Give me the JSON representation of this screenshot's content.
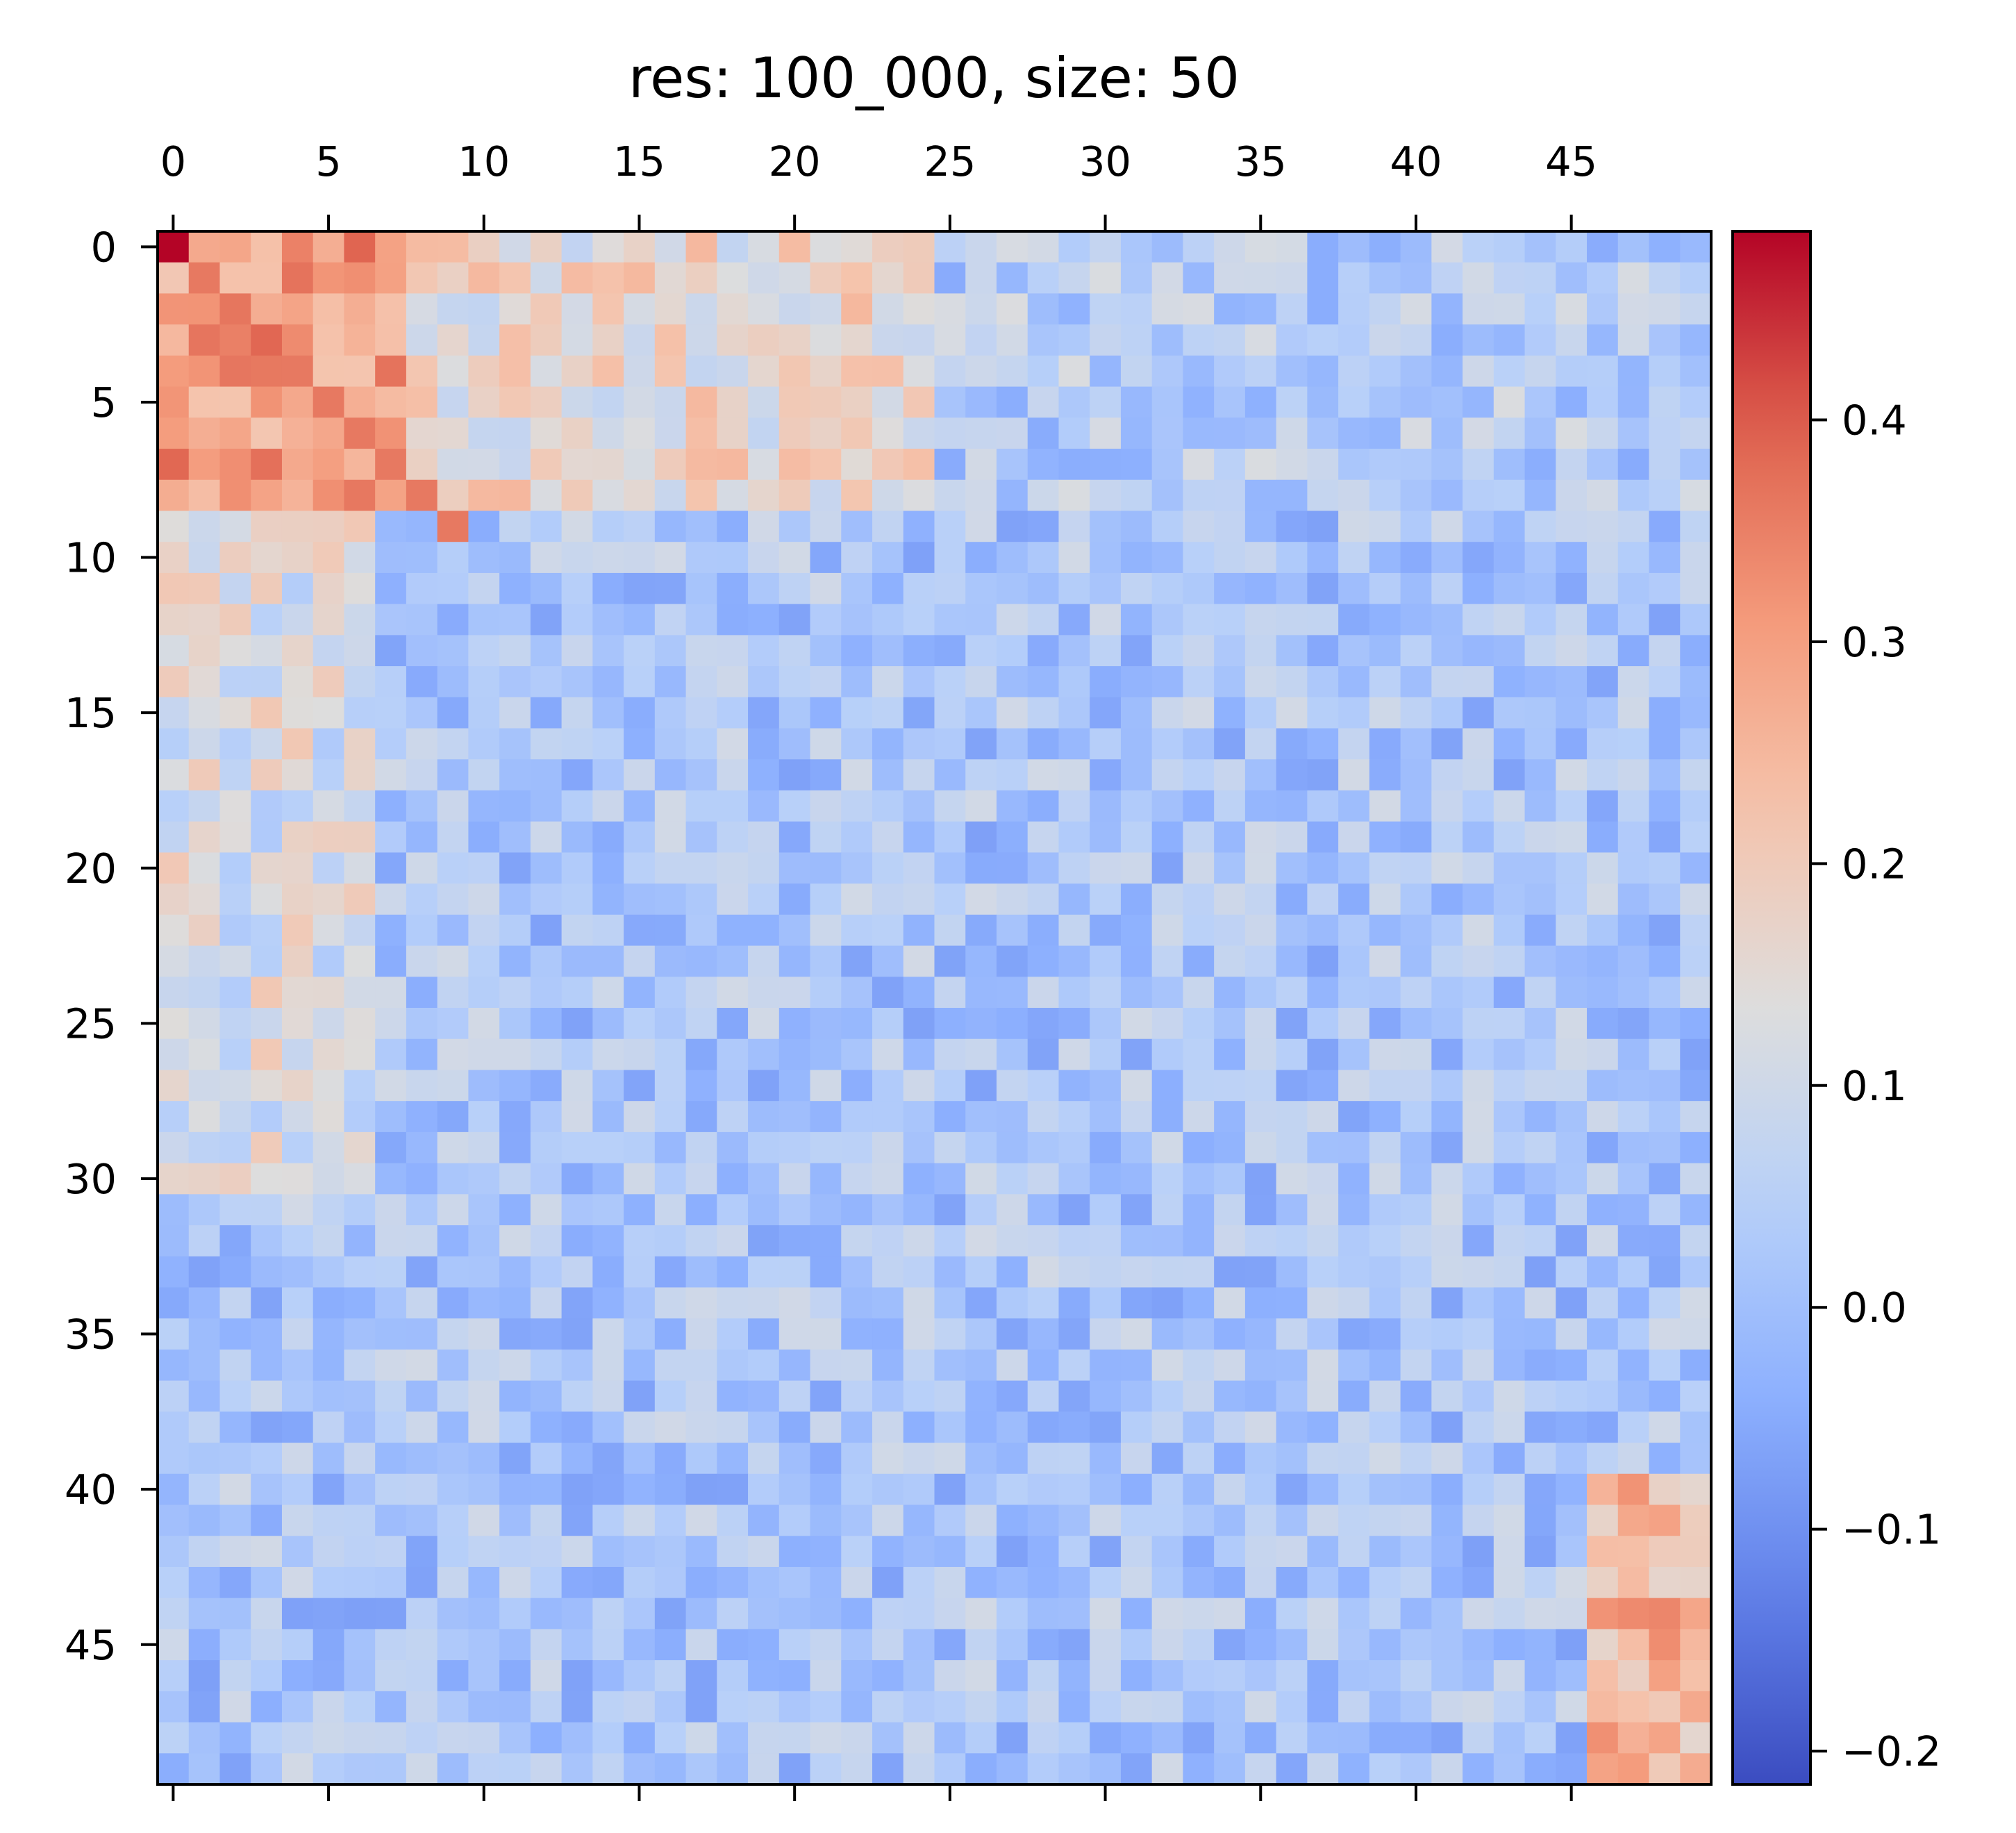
{
  "chart_data": {
    "type": "heatmap",
    "title": "res: 100_000, size: 50",
    "xlabel": "",
    "ylabel": "",
    "rows": 50,
    "cols": 50,
    "colormap": "coolwarm",
    "vmin": -0.215,
    "vmax": 0.485,
    "x_axis_position": "top",
    "x_ticks": [
      0,
      5,
      10,
      15,
      20,
      25,
      30,
      35,
      40,
      45
    ],
    "x_tick_labels": [
      "0",
      "5",
      "10",
      "15",
      "20",
      "25",
      "30",
      "35",
      "40",
      "45"
    ],
    "y_ticks": [
      0,
      5,
      10,
      15,
      20,
      25,
      30,
      35,
      40,
      45
    ],
    "y_tick_labels": [
      "0",
      "5",
      "10",
      "15",
      "20",
      "25",
      "30",
      "35",
      "40",
      "45"
    ],
    "colorbar": {
      "location": "right",
      "ticks": [
        -0.2,
        -0.1,
        0.0,
        0.1,
        0.2,
        0.3,
        0.4
      ],
      "tick_labels": [
        "−0.2",
        "−0.1",
        "0.0",
        "0.1",
        "0.2",
        "0.3",
        "0.4"
      ]
    },
    "cell_value_model": {
      "description": "approximate block structure read from the colors",
      "top_left_block": {
        "rows": [
          0,
          8
        ],
        "cols": [
          0,
          7
        ],
        "value": 0.3
      },
      "top_mid_block": {
        "rows": [
          0,
          8
        ],
        "cols": [
          7,
          24
        ],
        "value": 0.16
      },
      "top_right_block": {
        "rows": [
          0,
          8
        ],
        "cols": [
          24,
          49
        ],
        "value": 0.04
      },
      "left_strip": {
        "rows": [
          9,
          30
        ],
        "cols": [
          0,
          6
        ],
        "value": 0.12
      },
      "bottom_right_block": {
        "rows": [
          40,
          49
        ],
        "cols": [
          46,
          49
        ],
        "value": 0.25
      },
      "background": 0.02
    }
  }
}
